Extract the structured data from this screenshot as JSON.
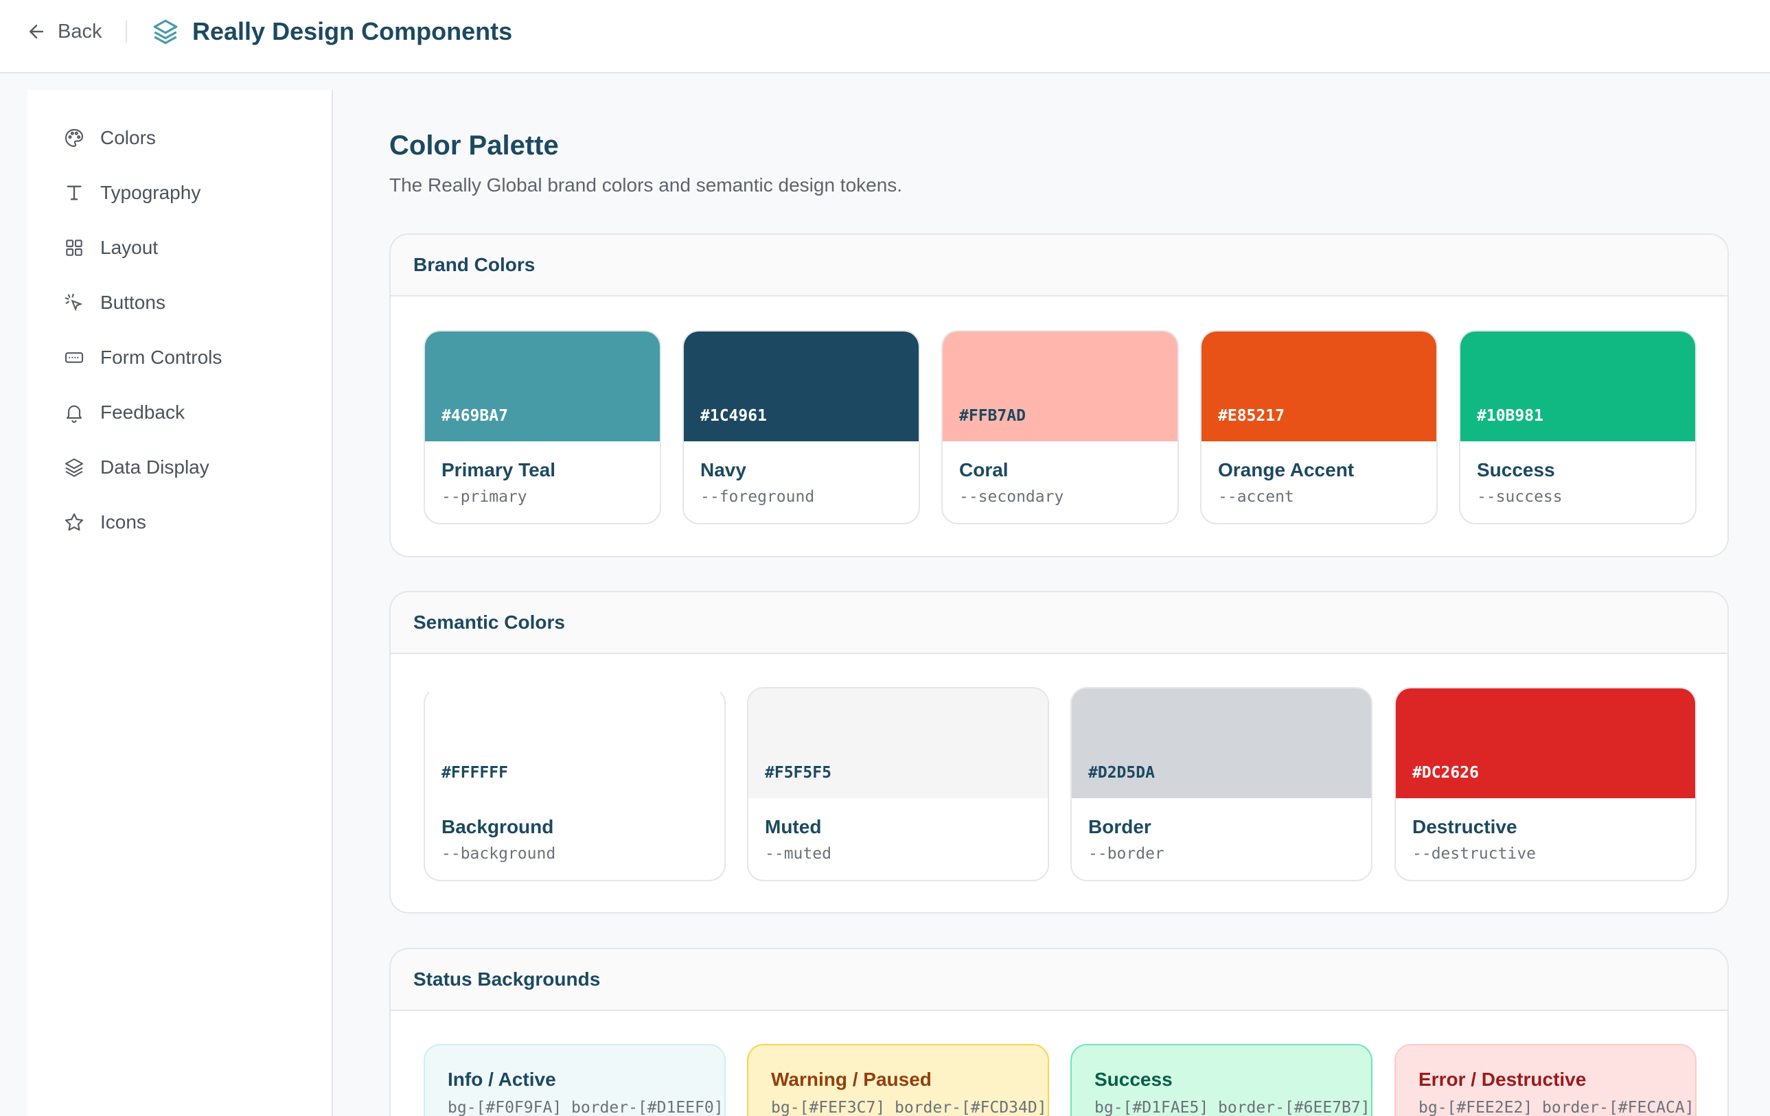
{
  "header": {
    "back_label": "Back",
    "title": "Really Design Components"
  },
  "sidebar": {
    "items": [
      {
        "label": "Colors",
        "icon": "palette-icon"
      },
      {
        "label": "Typography",
        "icon": "type-icon"
      },
      {
        "label": "Layout",
        "icon": "grid-icon"
      },
      {
        "label": "Buttons",
        "icon": "pointer-click-icon"
      },
      {
        "label": "Form Controls",
        "icon": "input-icon"
      },
      {
        "label": "Feedback",
        "icon": "bell-icon"
      },
      {
        "label": "Data Display",
        "icon": "layers-icon"
      },
      {
        "label": "Icons",
        "icon": "star-icon"
      }
    ]
  },
  "main": {
    "title": "Color Palette",
    "subtitle": "The Really Global brand colors and semantic design tokens.",
    "brand": {
      "heading": "Brand Colors",
      "swatches": [
        {
          "hex": "#469BA7",
          "name": "Primary Teal",
          "token": "--primary",
          "color": "#469BA7",
          "text_color": "#ffffff"
        },
        {
          "hex": "#1C4961",
          "name": "Navy",
          "token": "--foreground",
          "color": "#1C4961",
          "text_color": "#ffffff"
        },
        {
          "hex": "#FFB7AD",
          "name": "Coral",
          "token": "--secondary",
          "color": "#FFB7AD",
          "text_color": "#1C4961"
        },
        {
          "hex": "#E85217",
          "name": "Orange Accent",
          "token": "--accent",
          "color": "#E85217",
          "text_color": "#ffffff"
        },
        {
          "hex": "#10B981",
          "name": "Success",
          "token": "--success",
          "color": "#10B981",
          "text_color": "#ffffff"
        }
      ]
    },
    "semantic": {
      "heading": "Semantic Colors",
      "swatches": [
        {
          "hex": "#FFFFFF",
          "name": "Background",
          "token": "--background",
          "color": "#FFFFFF",
          "text_color": "#1C4961"
        },
        {
          "hex": "#F5F5F5",
          "name": "Muted",
          "token": "--muted",
          "color": "#F5F5F5",
          "text_color": "#1C4961"
        },
        {
          "hex": "#D2D5DA",
          "name": "Border",
          "token": "--border",
          "color": "#D2D5DA",
          "text_color": "#1C4961"
        },
        {
          "hex": "#DC2626",
          "name": "Destructive",
          "token": "--destructive",
          "color": "#DC2626",
          "text_color": "#ffffff"
        }
      ]
    },
    "status": {
      "heading": "Status Backgrounds",
      "cards": [
        {
          "title": "Info / Active",
          "classes": "bg-[#F0F9FA] border-[#D1EEF0]",
          "bg": "#F0F9FA",
          "border": "#D1EEF0",
          "title_color": "#1C4961"
        },
        {
          "title": "Warning / Paused",
          "classes": "bg-[#FEF3C7] border-[#FCD34D]",
          "bg": "#FEF3C7",
          "border": "#FCD34D",
          "title_color": "#92400E"
        },
        {
          "title": "Success",
          "classes": "bg-[#D1FAE5] border-[#6EE7B7]",
          "bg": "#D1FAE5",
          "border": "#6EE7B7",
          "title_color": "#065F46"
        },
        {
          "title": "Error / Destructive",
          "classes": "bg-[#FEE2E2] border-[#FECACA]",
          "bg": "#FEE2E2",
          "border": "#FECACA",
          "title_color": "#991B1B"
        }
      ]
    }
  }
}
